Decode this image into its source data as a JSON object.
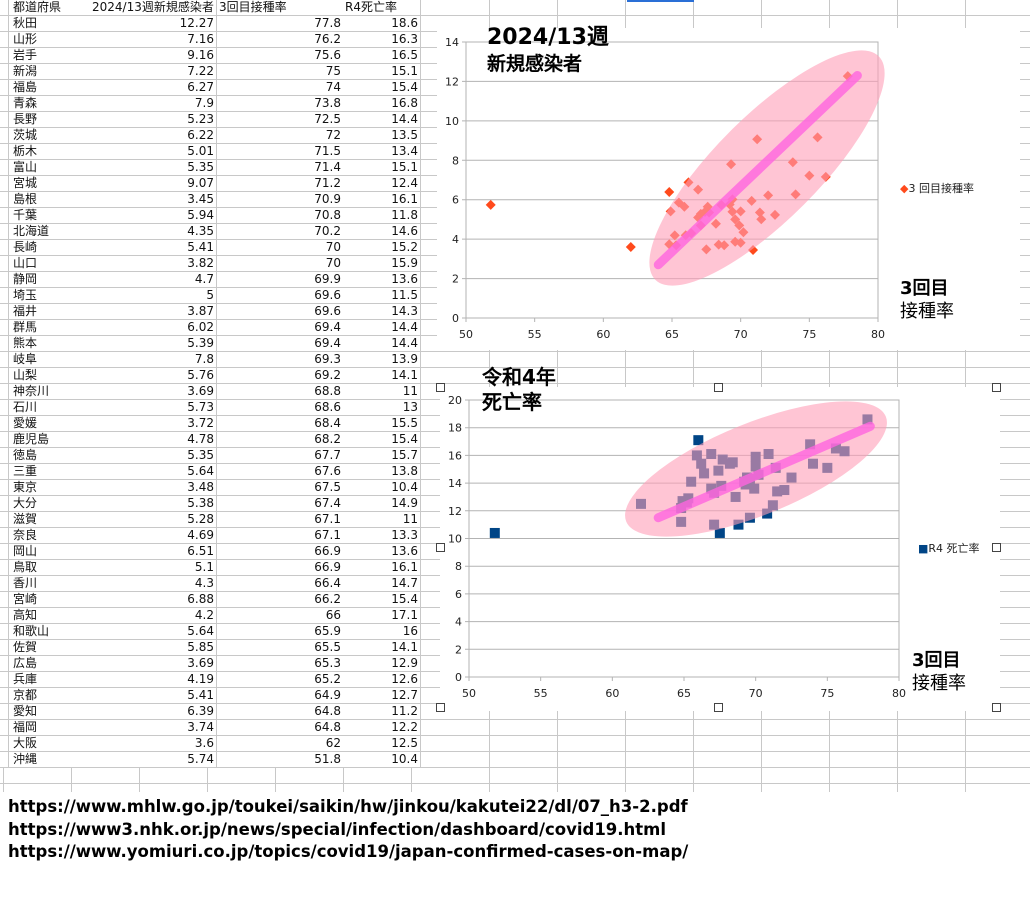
{
  "sheet": {
    "headers": [
      "都道府県",
      "2024/13週新規感染者",
      "3回目接種率",
      "R4死亡率"
    ],
    "rows": [
      [
        "秋田",
        "12.27",
        "77.8",
        "18.6"
      ],
      [
        "山形",
        "7.16",
        "76.2",
        "16.3"
      ],
      [
        "岩手",
        "9.16",
        "75.6",
        "16.5"
      ],
      [
        "新潟",
        "7.22",
        "75",
        "15.1"
      ],
      [
        "福島",
        "6.27",
        "74",
        "15.4"
      ],
      [
        "青森",
        "7.9",
        "73.8",
        "16.8"
      ],
      [
        "長野",
        "5.23",
        "72.5",
        "14.4"
      ],
      [
        "茨城",
        "6.22",
        "72",
        "13.5"
      ],
      [
        "栃木",
        "5.01",
        "71.5",
        "13.4"
      ],
      [
        "富山",
        "5.35",
        "71.4",
        "15.1"
      ],
      [
        "宮城",
        "9.07",
        "71.2",
        "12.4"
      ],
      [
        "島根",
        "3.45",
        "70.9",
        "16.1"
      ],
      [
        "千葉",
        "5.94",
        "70.8",
        "11.8"
      ],
      [
        "北海道",
        "4.35",
        "70.2",
        "14.6"
      ],
      [
        "長崎",
        "5.41",
        "70",
        "15.2"
      ],
      [
        "山口",
        "3.82",
        "70",
        "15.9"
      ],
      [
        "静岡",
        "4.7",
        "69.9",
        "13.6"
      ],
      [
        "埼玉",
        "5",
        "69.6",
        "11.5"
      ],
      [
        "福井",
        "3.87",
        "69.6",
        "14.3"
      ],
      [
        "群馬",
        "6.02",
        "69.4",
        "14.4"
      ],
      [
        "熊本",
        "5.39",
        "69.4",
        "14.4"
      ],
      [
        "岐阜",
        "7.8",
        "69.3",
        "13.9"
      ],
      [
        "山梨",
        "5.76",
        "69.2",
        "14.1"
      ],
      [
        "神奈川",
        "3.69",
        "68.8",
        "11"
      ],
      [
        "石川",
        "5.73",
        "68.6",
        "13"
      ],
      [
        "愛媛",
        "3.72",
        "68.4",
        "15.5"
      ],
      [
        "鹿児島",
        "4.78",
        "68.2",
        "15.4"
      ],
      [
        "徳島",
        "5.35",
        "67.7",
        "15.7"
      ],
      [
        "三重",
        "5.64",
        "67.6",
        "13.8"
      ],
      [
        "東京",
        "3.48",
        "67.5",
        "10.4"
      ],
      [
        "大分",
        "5.38",
        "67.4",
        "14.9"
      ],
      [
        "滋賀",
        "5.28",
        "67.1",
        "11"
      ],
      [
        "奈良",
        "4.69",
        "67.1",
        "13.3"
      ],
      [
        "岡山",
        "6.51",
        "66.9",
        "13.6"
      ],
      [
        "鳥取",
        "5.1",
        "66.9",
        "16.1"
      ],
      [
        "香川",
        "4.3",
        "66.4",
        "14.7"
      ],
      [
        "宮崎",
        "6.88",
        "66.2",
        "15.4"
      ],
      [
        "高知",
        "4.2",
        "66",
        "17.1"
      ],
      [
        "和歌山",
        "5.64",
        "65.9",
        "16"
      ],
      [
        "佐賀",
        "5.85",
        "65.5",
        "14.1"
      ],
      [
        "広島",
        "3.69",
        "65.3",
        "12.9"
      ],
      [
        "兵庫",
        "4.19",
        "65.2",
        "12.6"
      ],
      [
        "京都",
        "5.41",
        "64.9",
        "12.7"
      ],
      [
        "愛知",
        "6.39",
        "64.8",
        "11.2"
      ],
      [
        "福岡",
        "3.74",
        "64.8",
        "12.2"
      ],
      [
        "大阪",
        "3.6",
        "62",
        "12.5"
      ],
      [
        "沖縄",
        "5.74",
        "51.8",
        "10.4"
      ]
    ]
  },
  "chart_data": [
    {
      "type": "scatter",
      "title_line1": "2024/13週",
      "title_line2": "新規感染者",
      "xlabel_line1": "3回目",
      "xlabel_line2": "接種率",
      "legend": "3 回目接種率",
      "legend_placement": "right",
      "marker": "diamond",
      "color": "#ff4a1c",
      "xlim": [
        50,
        80
      ],
      "xticks": [
        50,
        55,
        60,
        65,
        70,
        75,
        80
      ],
      "ylim": [
        0,
        14
      ],
      "yticks": [
        0,
        2,
        4,
        6,
        8,
        10,
        12,
        14
      ],
      "grid": "horizontal",
      "x_column": 2,
      "y_column": 1,
      "annotation": {
        "blob_color": "#ff9fb8",
        "trend_color": "#ff66e0",
        "trend_from": [
          64,
          2.7
        ],
        "trend_to": [
          78.5,
          12.3
        ]
      }
    },
    {
      "type": "scatter",
      "title_line1": "令和4年",
      "title_line2": "死亡率",
      "xlabel_line1": "3回目",
      "xlabel_line2": "接種率",
      "legend": "R4 死亡率",
      "legend_placement": "right",
      "marker": "square",
      "color": "#004586",
      "xlim": [
        50,
        80
      ],
      "xticks": [
        50,
        55,
        60,
        65,
        70,
        75,
        80
      ],
      "ylim": [
        0,
        20
      ],
      "yticks": [
        0,
        2,
        4,
        6,
        8,
        10,
        12,
        14,
        16,
        18,
        20
      ],
      "grid": "horizontal",
      "x_column": 2,
      "y_column": 3,
      "annotation": {
        "blob_color": "#ff9fb8",
        "trend_color": "#ff66e0",
        "trend_from": [
          63.2,
          11.5
        ],
        "trend_to": [
          78,
          18.1
        ]
      }
    }
  ],
  "sources": [
    "https://www.mhlw.go.jp/toukei/saikin/hw/jinkou/kakutei22/dl/07_h3-2.pdf",
    "https://www3.nhk.or.jp/news/special/infection/dashboard/covid19.html",
    "https://www.yomiuri.co.jp/topics/covid19/japan-confirmed-cases-on-map/"
  ]
}
